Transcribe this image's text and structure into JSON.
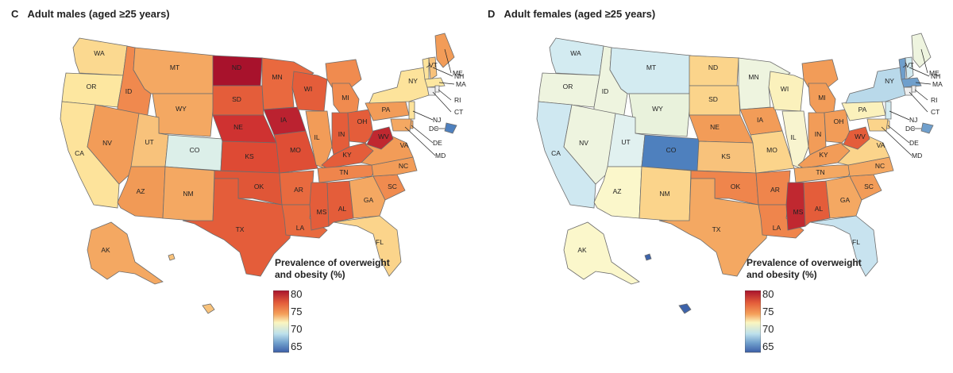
{
  "panels": [
    {
      "letter": "C",
      "label": "Adult males (aged ≥25 years)",
      "colors": {
        "WA": "#fbd990",
        "OR": "#fde7a0",
        "CA": "#fde39b",
        "ID": "#f0894e",
        "NV": "#f29c58",
        "MT": "#f4a862",
        "WY": "#f4a862",
        "UT": "#f8c27b",
        "CO": "#dcefe9",
        "AZ": "#f19a56",
        "NM": "#f4a862",
        "ND": "#a8122c",
        "SD": "#e45d3a",
        "NE": "#cf3231",
        "KS": "#de4a34",
        "OK": "#e05637",
        "TX": "#e45d3a",
        "MN": "#e9693f",
        "IA": "#bb2230",
        "MO": "#df4e35",
        "AR": "#e86a3f",
        "LA": "#e86a3f",
        "WI": "#e45d3a",
        "IL": "#f29c58",
        "MI": "#f08b4f",
        "IN": "#e45d3a",
        "OH": "#e45d3a",
        "KY": "#e45d3a",
        "TN": "#ef854c",
        "MS": "#e45d3a",
        "AL": "#e45d3a",
        "GA": "#f4a862",
        "FL": "#fbd48b",
        "SC": "#f08b4f",
        "NC": "#f29c58",
        "VA": "#f29c58",
        "WV": "#c02830",
        "PA": "#f29c58",
        "NY": "#fde39b",
        "ME": "#f29c58",
        "VT": "#fde39b",
        "NH": "#f8c27b",
        "MA": "#fde7a0",
        "NJ": "#fde39b",
        "MD": "#f4a862",
        "DE": "#f4a862",
        "DC": "#4e80be",
        "AK": "#f4a862",
        "HI": "#f8c27b"
      },
      "legend": {
        "title_line1": "Prevalence of overweight",
        "title_line2": "and obesity (%)",
        "ticks": [
          "80",
          "75",
          "70",
          "65"
        ]
      }
    },
    {
      "letter": "D",
      "label": "Adult females (aged ≥25 years)",
      "colors": {
        "WA": "#d3ebf1",
        "OR": "#eef4df",
        "CA": "#cfe8f1",
        "ID": "#eef4df",
        "NV": "#eef4df",
        "MT": "#d3ebf1",
        "WY": "#e9f2dc",
        "UT": "#e1f1f0",
        "CO": "#4e80be",
        "AZ": "#fbf7cb",
        "NM": "#fbd48b",
        "ND": "#fbd48b",
        "SD": "#fbd48b",
        "NE": "#f29c58",
        "KS": "#f8c27b",
        "OK": "#ef854c",
        "TX": "#f4a862",
        "MN": "#eef4df",
        "IA": "#f29c58",
        "MO": "#fbd48b",
        "AR": "#ef854c",
        "LA": "#ef854c",
        "WI": "#fbf1bc",
        "IL": "#f8f4cf",
        "MI": "#f29c58",
        "IN": "#f29c58",
        "OH": "#f29c58",
        "KY": "#f29c58",
        "TN": "#f4a862",
        "MS": "#c02830",
        "AL": "#e45d3a",
        "GA": "#f4a862",
        "FL": "#c8e3ef",
        "SC": "#f29c58",
        "NC": "#f4a862",
        "VA": "#fbd48b",
        "WV": "#e45d3a",
        "PA": "#fbf1bc",
        "NY": "#b9d9ea",
        "ME": "#eef4df",
        "VT": "#6f9fcc",
        "NH": "#d3ebf1",
        "MA": "#6f9fcc",
        "NJ": "#d3ebf1",
        "MD": "#fbd48b",
        "DE": "#fbd48b",
        "DC": "#6f9fcc",
        "AK": "#fbf7cb",
        "HI": "#3d63aa"
      },
      "legend": {
        "title_line1": "Prevalence of overweight",
        "title_line2": "and obesity (%)",
        "ticks": [
          "80",
          "75",
          "70",
          "65"
        ]
      }
    }
  ],
  "state_labels": {
    "WA": "WA",
    "OR": "OR",
    "CA": "CA",
    "ID": "ID",
    "NV": "NV",
    "MT": "MT",
    "WY": "WY",
    "UT": "UT",
    "CO": "CO",
    "AZ": "AZ",
    "NM": "NM",
    "ND": "ND",
    "SD": "SD",
    "NE": "NE",
    "KS": "KS",
    "OK": "OK",
    "TX": "TX",
    "MN": "MN",
    "IA": "IA",
    "MO": "MO",
    "AR": "AR",
    "LA": "LA",
    "WI": "WI",
    "IL": "IL",
    "MI": "MI",
    "IN": "IN",
    "OH": "OH",
    "KY": "KY",
    "TN": "TN",
    "MS": "MS",
    "AL": "AL",
    "GA": "GA",
    "FL": "FL",
    "SC": "SC",
    "NC": "NC",
    "VA": "VA",
    "WV": "WV",
    "PA": "PA",
    "NY": "NY",
    "ME": "ME",
    "VT": "VT",
    "NH": "NH",
    "MA": "MA",
    "RI": "RI",
    "CT": "CT",
    "NJ": "NJ",
    "DC": "DC",
    "DE": "DE",
    "MD": "MD",
    "AK": "AK"
  },
  "colorscale": [
    "#3c5fa8",
    "#6f9fcc",
    "#bde0ec",
    "#fbf6c0",
    "#fbcf85",
    "#f4a05a",
    "#e45d3a",
    "#a8122c"
  ]
}
